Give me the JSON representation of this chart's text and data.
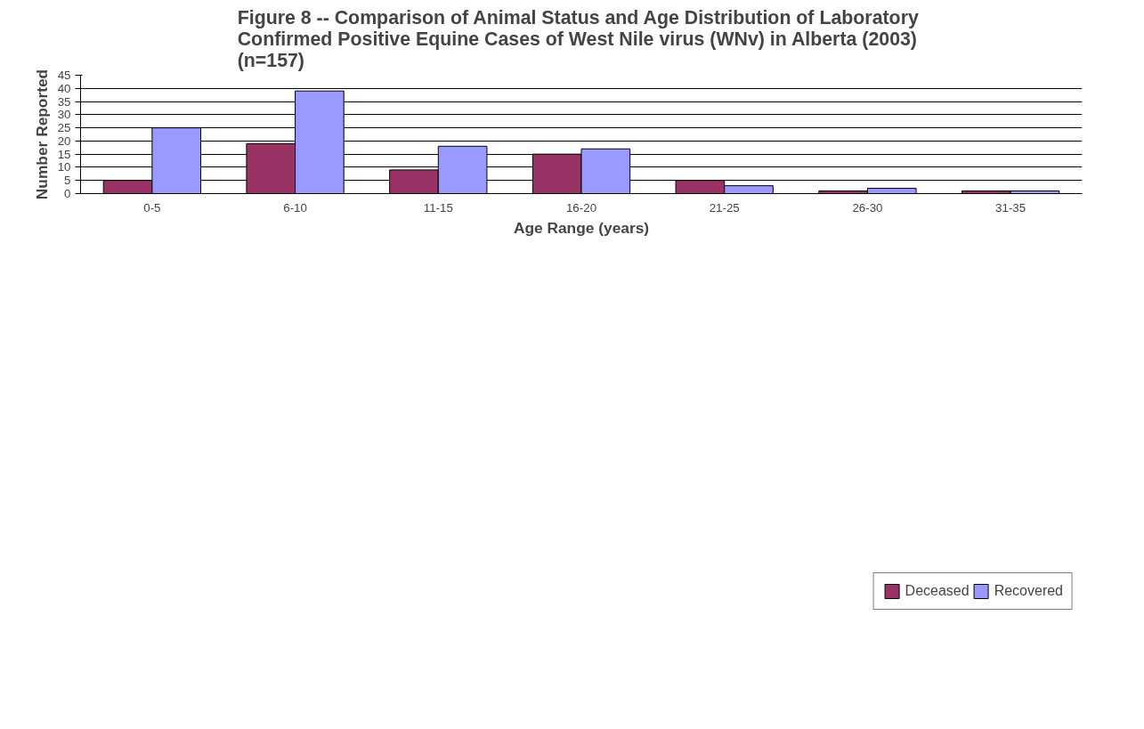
{
  "chart_data": {
    "type": "bar",
    "title": "Figure 8 --  Comparison of Animal Status and Age Distribution of Laboratory\nConfirmed Positive Equine Cases of West Nile virus (WNv) in Alberta (2003)\n(n=157)",
    "xlabel": "Age Range (years)",
    "ylabel": "Number Reported",
    "categories": [
      "0-5",
      "6-10",
      "11-15",
      "16-20",
      "21-25",
      "26-30",
      "31-35"
    ],
    "series": [
      {
        "name": "Deceased",
        "color": "#993366",
        "values": [
          5,
          19,
          9,
          15,
          5,
          1,
          1
        ]
      },
      {
        "name": "Recovered",
        "color": "#9999ff",
        "values": [
          25,
          39,
          18,
          17,
          3,
          2,
          1
        ]
      }
    ],
    "ylim": [
      0,
      45
    ],
    "yticks": [
      0,
      5,
      10,
      15,
      20,
      25,
      30,
      35,
      40,
      45
    ],
    "grid": "y",
    "legend": "bottom right"
  }
}
